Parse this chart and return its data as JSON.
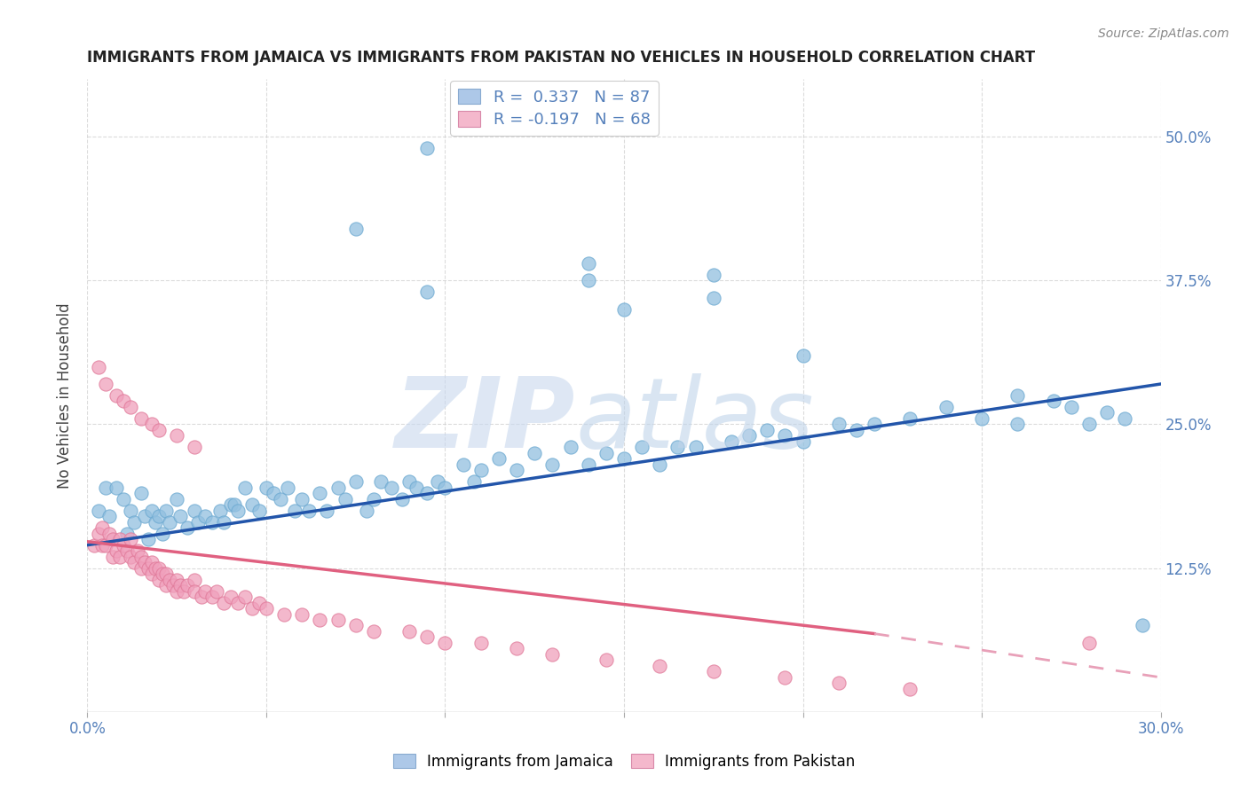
{
  "title": "IMMIGRANTS FROM JAMAICA VS IMMIGRANTS FROM PAKISTAN NO VEHICLES IN HOUSEHOLD CORRELATION CHART",
  "source": "Source: ZipAtlas.com",
  "ylabel": "No Vehicles in Household",
  "xlim": [
    0.0,
    0.3
  ],
  "ylim": [
    0.0,
    0.55
  ],
  "xticks": [
    0.0,
    0.05,
    0.1,
    0.15,
    0.2,
    0.25,
    0.3
  ],
  "xticklabels": [
    "0.0%",
    "",
    "",
    "",
    "",
    "",
    "30.0%"
  ],
  "yticks": [
    0.0,
    0.125,
    0.25,
    0.375,
    0.5
  ],
  "yticklabels_right": [
    "",
    "12.5%",
    "25.0%",
    "37.5%",
    "50.0%"
  ],
  "legend1_label": "R =  0.337   N = 87",
  "legend2_label": "R = -0.197   N = 68",
  "legend1_color": "#adc8e8",
  "legend2_color": "#f4b8cc",
  "series1_color": "#92c0e0",
  "series2_color": "#f0a0bc",
  "series1_edge": "#6aa8d0",
  "series2_edge": "#e07898",
  "trendline1_color": "#2255aa",
  "trendline2_color": "#e06080",
  "watermark_zip_color": "#c8d8ee",
  "watermark_atlas_color": "#c0d4ea",
  "background_color": "#ffffff",
  "grid_color": "#cccccc",
  "title_color": "#222222",
  "axis_label_color": "#5580bb",
  "trendline2_dash_color": "#e8a0b8",
  "jamaica_x": [
    0.003,
    0.005,
    0.006,
    0.008,
    0.01,
    0.011,
    0.012,
    0.013,
    0.015,
    0.016,
    0.017,
    0.018,
    0.019,
    0.02,
    0.021,
    0.022,
    0.023,
    0.025,
    0.026,
    0.028,
    0.03,
    0.031,
    0.033,
    0.035,
    0.037,
    0.038,
    0.04,
    0.041,
    0.042,
    0.044,
    0.046,
    0.048,
    0.05,
    0.052,
    0.054,
    0.056,
    0.058,
    0.06,
    0.062,
    0.065,
    0.067,
    0.07,
    0.072,
    0.075,
    0.078,
    0.08,
    0.082,
    0.085,
    0.088,
    0.09,
    0.092,
    0.095,
    0.098,
    0.1,
    0.105,
    0.108,
    0.11,
    0.115,
    0.12,
    0.125,
    0.13,
    0.135,
    0.14,
    0.145,
    0.15,
    0.155,
    0.16,
    0.165,
    0.17,
    0.18,
    0.185,
    0.19,
    0.195,
    0.2,
    0.21,
    0.215,
    0.22,
    0.23,
    0.24,
    0.25,
    0.26,
    0.27,
    0.275,
    0.28,
    0.285,
    0.29,
    0.295
  ],
  "jamaica_y": [
    0.175,
    0.195,
    0.17,
    0.195,
    0.185,
    0.155,
    0.175,
    0.165,
    0.19,
    0.17,
    0.15,
    0.175,
    0.165,
    0.17,
    0.155,
    0.175,
    0.165,
    0.185,
    0.17,
    0.16,
    0.175,
    0.165,
    0.17,
    0.165,
    0.175,
    0.165,
    0.18,
    0.18,
    0.175,
    0.195,
    0.18,
    0.175,
    0.195,
    0.19,
    0.185,
    0.195,
    0.175,
    0.185,
    0.175,
    0.19,
    0.175,
    0.195,
    0.185,
    0.2,
    0.175,
    0.185,
    0.2,
    0.195,
    0.185,
    0.2,
    0.195,
    0.19,
    0.2,
    0.195,
    0.215,
    0.2,
    0.21,
    0.22,
    0.21,
    0.225,
    0.215,
    0.23,
    0.215,
    0.225,
    0.22,
    0.23,
    0.215,
    0.23,
    0.23,
    0.235,
    0.24,
    0.245,
    0.24,
    0.235,
    0.25,
    0.245,
    0.25,
    0.255,
    0.265,
    0.255,
    0.275,
    0.27,
    0.265,
    0.25,
    0.26,
    0.255,
    0.075
  ],
  "jamaica_outliers_x": [
    0.095,
    0.075,
    0.14,
    0.14,
    0.095,
    0.15,
    0.175,
    0.175,
    0.2,
    0.26
  ],
  "jamaica_outliers_y": [
    0.49,
    0.42,
    0.39,
    0.375,
    0.365,
    0.35,
    0.36,
    0.38,
    0.31,
    0.25
  ],
  "pakistan_x": [
    0.002,
    0.003,
    0.004,
    0.004,
    0.005,
    0.006,
    0.007,
    0.007,
    0.008,
    0.009,
    0.009,
    0.01,
    0.011,
    0.012,
    0.012,
    0.013,
    0.014,
    0.015,
    0.015,
    0.016,
    0.017,
    0.018,
    0.018,
    0.019,
    0.02,
    0.02,
    0.021,
    0.022,
    0.022,
    0.023,
    0.024,
    0.025,
    0.025,
    0.026,
    0.027,
    0.028,
    0.03,
    0.03,
    0.032,
    0.033,
    0.035,
    0.036,
    0.038,
    0.04,
    0.042,
    0.044,
    0.046,
    0.048,
    0.05,
    0.055,
    0.06,
    0.065,
    0.07,
    0.075,
    0.08,
    0.09,
    0.095,
    0.1,
    0.11,
    0.12,
    0.13,
    0.145,
    0.16,
    0.175,
    0.195,
    0.21,
    0.23,
    0.28
  ],
  "pakistan_y": [
    0.145,
    0.155,
    0.145,
    0.16,
    0.145,
    0.155,
    0.135,
    0.15,
    0.14,
    0.135,
    0.15,
    0.145,
    0.14,
    0.135,
    0.15,
    0.13,
    0.14,
    0.135,
    0.125,
    0.13,
    0.125,
    0.13,
    0.12,
    0.125,
    0.125,
    0.115,
    0.12,
    0.12,
    0.11,
    0.115,
    0.11,
    0.115,
    0.105,
    0.11,
    0.105,
    0.11,
    0.115,
    0.105,
    0.1,
    0.105,
    0.1,
    0.105,
    0.095,
    0.1,
    0.095,
    0.1,
    0.09,
    0.095,
    0.09,
    0.085,
    0.085,
    0.08,
    0.08,
    0.075,
    0.07,
    0.07,
    0.065,
    0.06,
    0.06,
    0.055,
    0.05,
    0.045,
    0.04,
    0.035,
    0.03,
    0.025,
    0.02,
    0.06
  ],
  "pakistan_outliers_x": [
    0.003,
    0.005,
    0.008,
    0.01,
    0.012,
    0.015,
    0.018,
    0.02,
    0.025,
    0.03
  ],
  "pakistan_outliers_y": [
    0.3,
    0.285,
    0.275,
    0.27,
    0.265,
    0.255,
    0.25,
    0.245,
    0.24,
    0.23
  ],
  "trendline1_x0": 0.0,
  "trendline1_x1": 0.3,
  "trendline1_y0": 0.145,
  "trendline1_y1": 0.285,
  "trendline2_x0": 0.0,
  "trendline2_x1_solid": 0.22,
  "trendline2_x1_dash": 0.3,
  "trendline2_y0": 0.148,
  "trendline2_y1_solid": 0.068,
  "trendline2_y1_dash": 0.03
}
